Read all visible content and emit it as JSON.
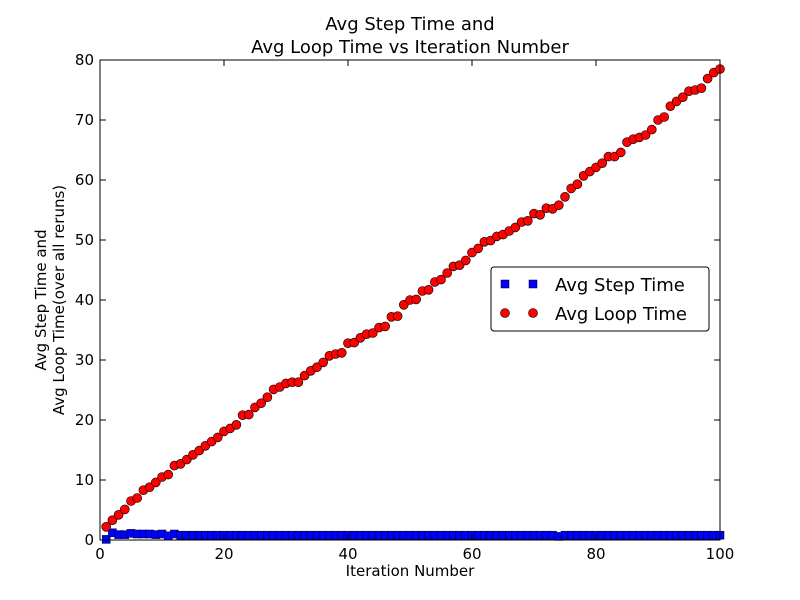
{
  "chart_data": {
    "type": "scatter",
    "title_lines": [
      "Avg Step Time and",
      "Avg Loop Time vs Iteration Number"
    ],
    "xlabel": "Iteration Number",
    "ylabel_lines": [
      "Avg Step Time and",
      "Avg Loop Time(over all reruns)"
    ],
    "xlim": [
      0,
      100
    ],
    "ylim": [
      0,
      80
    ],
    "xticks": [
      0,
      20,
      40,
      60,
      80,
      100
    ],
    "yticks": [
      0,
      10,
      20,
      30,
      40,
      50,
      60,
      70,
      80
    ],
    "grid": false,
    "legend_position": "center-right",
    "x": [
      1,
      2,
      3,
      4,
      5,
      6,
      7,
      8,
      9,
      10,
      11,
      12,
      13,
      14,
      15,
      16,
      17,
      18,
      19,
      20,
      21,
      22,
      23,
      24,
      25,
      26,
      27,
      28,
      29,
      30,
      31,
      32,
      33,
      34,
      35,
      36,
      37,
      38,
      39,
      40,
      41,
      42,
      43,
      44,
      45,
      46,
      47,
      48,
      49,
      50,
      51,
      52,
      53,
      54,
      55,
      56,
      57,
      58,
      59,
      60,
      61,
      62,
      63,
      64,
      65,
      66,
      67,
      68,
      69,
      70,
      71,
      72,
      73,
      74,
      75,
      76,
      77,
      78,
      79,
      80,
      81,
      82,
      83,
      84,
      85,
      86,
      87,
      88,
      89,
      90,
      91,
      92,
      93,
      94,
      95,
      96,
      97,
      98,
      99,
      100
    ],
    "series": [
      {
        "name": "Avg Step Time",
        "color": "#0000ff",
        "marker": "square",
        "values": [
          0.1,
          1.2,
          0.9,
          0.9,
          1.1,
          1.0,
          1.0,
          1.0,
          0.9,
          1.0,
          0.7,
          1.0,
          0.8,
          0.8,
          0.8,
          0.8,
          0.8,
          0.8,
          0.8,
          0.8,
          0.8,
          0.8,
          0.8,
          0.8,
          0.8,
          0.8,
          0.8,
          0.8,
          0.8,
          0.8,
          0.8,
          0.8,
          0.8,
          0.8,
          0.8,
          0.8,
          0.8,
          0.8,
          0.8,
          0.8,
          0.8,
          0.8,
          0.8,
          0.8,
          0.8,
          0.8,
          0.8,
          0.8,
          0.8,
          0.8,
          0.8,
          0.8,
          0.8,
          0.8,
          0.8,
          0.8,
          0.8,
          0.8,
          0.8,
          0.8,
          0.8,
          0.8,
          0.8,
          0.8,
          0.8,
          0.8,
          0.8,
          0.8,
          0.8,
          0.8,
          0.8,
          0.8,
          0.8,
          0.6,
          0.8,
          0.8,
          0.8,
          0.8,
          0.8,
          0.8,
          0.8,
          0.8,
          0.8,
          0.8,
          0.8,
          0.8,
          0.8,
          0.8,
          0.8,
          0.8,
          0.8,
          0.8,
          0.8,
          0.8,
          0.8,
          0.8,
          0.8,
          0.8,
          0.8,
          0.8
        ]
      },
      {
        "name": "Avg Loop Time",
        "color": "#ff0000",
        "marker": "circle",
        "values": [
          2.2,
          3.3,
          4.2,
          5.1,
          6.5,
          7.0,
          8.3,
          8.8,
          9.6,
          10.5,
          10.9,
          12.4,
          12.7,
          13.4,
          14.2,
          14.9,
          15.7,
          16.4,
          17.1,
          18.1,
          18.6,
          19.2,
          20.8,
          20.9,
          22.1,
          22.8,
          23.8,
          25.1,
          25.5,
          26.1,
          26.3,
          26.3,
          27.4,
          28.2,
          28.8,
          29.6,
          30.7,
          31.0,
          31.2,
          32.8,
          32.9,
          33.7,
          34.3,
          34.5,
          35.4,
          35.6,
          37.2,
          37.3,
          39.2,
          40.0,
          40.1,
          41.5,
          41.7,
          43.0,
          43.4,
          44.5,
          45.6,
          45.8,
          46.6,
          47.9,
          48.6,
          49.7,
          49.9,
          50.6,
          50.9,
          51.5,
          52.1,
          53.0,
          53.2,
          54.4,
          54.2,
          55.3,
          55.2,
          55.8,
          57.2,
          58.6,
          59.3,
          60.7,
          61.4,
          62.1,
          62.8,
          63.9,
          63.9,
          64.6,
          66.3,
          66.8,
          67.1,
          67.5,
          68.4,
          70.0,
          70.5,
          72.3,
          73.1,
          73.8,
          74.8,
          75.0,
          75.3,
          76.9,
          77.9,
          78.5
        ]
      }
    ]
  }
}
